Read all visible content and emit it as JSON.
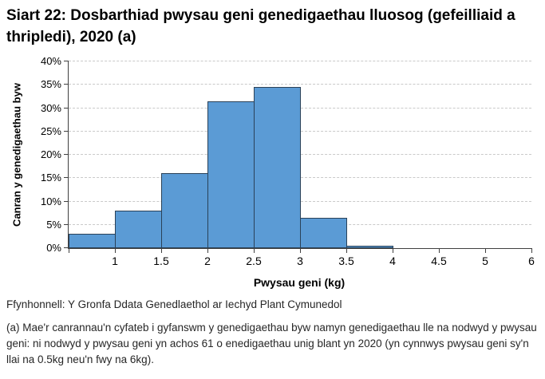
{
  "title": "Siart 22: Dosbarthiad pwysau geni genedigaethau lluosog (gefeilliaid a thripledi), 2020 (a)",
  "chart_data": {
    "type": "bar",
    "subtype": "histogram",
    "title": "Siart 22: Dosbarthiad pwysau geni genedigaethau lluosog (gefeilliaid a thripledi), 2020 (a)",
    "categories": [
      "1",
      "1.5",
      "2",
      "2.5",
      "3",
      "3.5",
      "4",
      "4.5",
      "5",
      "6"
    ],
    "values": [
      3,
      8,
      16,
      31.5,
      34.5,
      6.5,
      0.5,
      0,
      0,
      0
    ],
    "xlabel": "Pwysau geni (kg)",
    "ylabel": "Canran y genedigaethau byw",
    "ylim": [
      0,
      40
    ],
    "ytick_step": 5,
    "ytick_labels": [
      "0%",
      "5%",
      "10%",
      "15%",
      "20%",
      "25%",
      "30%",
      "35%",
      "40%"
    ],
    "grid": "horizontal-dashed",
    "legend": "none",
    "colors": {
      "bar_fill": "#5B9BD5",
      "bar_border": "#2A4158",
      "axis": "#404040",
      "gridline": "#c9c9c9"
    }
  },
  "footer": {
    "source": "Ffynhonnell: Y Gronfa Ddata Genedlaethol ar Iechyd Plant Cymunedol",
    "footnote": "(a) Mae'r canrannau'n cyfateb i gyfanswm y genedigaethau byw namyn genedigaethau lle na nodwyd y pwysau geni: ni nodwyd y pwysau geni yn achos 61 o enedigaethau unig blant yn 2020 (yn cynnwys pwysau geni sy'n llai na 0.5kg neu'n fwy na 6kg)."
  }
}
